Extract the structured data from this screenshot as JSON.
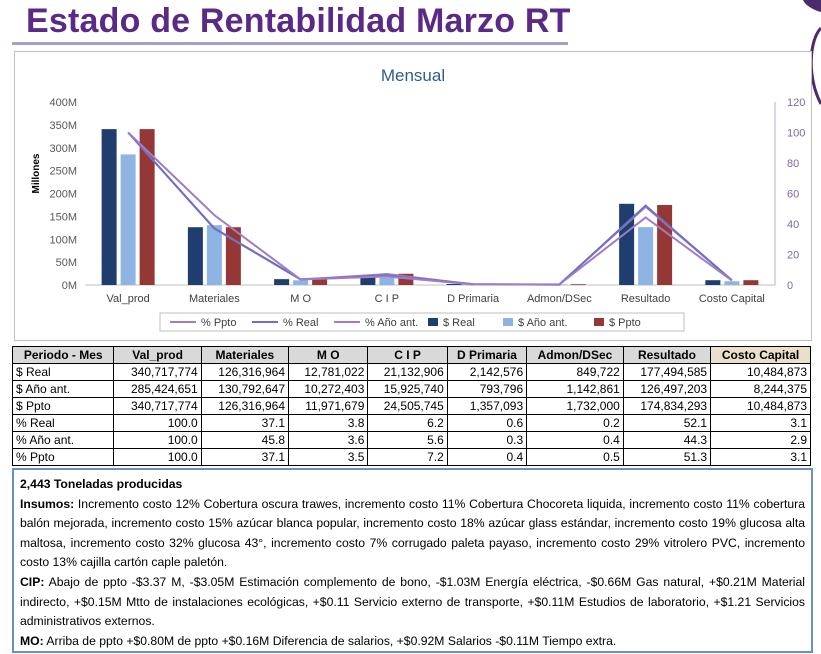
{
  "page_title": "Estado de Rentabilidad Marzo RT",
  "colors": {
    "title": "#5b2a86",
    "bar_real": "#1f3d6e",
    "bar_ano_ant": "#8db4e2",
    "bar_ppto": "#953735",
    "line_ppto": "#9b7fc0",
    "line_real": "#6f6fc4",
    "line_ano_ant": "#a07cc4"
  },
  "chart_data": {
    "type": "bar",
    "title": "Mensual",
    "ylabel": "Millones",
    "ylim": [
      0,
      400
    ],
    "y_ticks": [
      "0M",
      "50M",
      "100M",
      "150M",
      "200M",
      "250M",
      "300M",
      "350M",
      "400M"
    ],
    "y2lim": [
      0,
      120
    ],
    "y2_ticks": [
      "0",
      "20",
      "40",
      "60",
      "80",
      "100",
      "120"
    ],
    "categories": [
      "Val_prod",
      "Materiales",
      "M O",
      "C I P",
      "D Primaria",
      "Admon/DSec",
      "Resultado",
      "Costo Capital"
    ],
    "bar_series": [
      {
        "name": "$ Real",
        "values": [
          340.717774,
          126.316964,
          12.781022,
          21.132906,
          2.142576,
          0.849722,
          177.494585,
          10.484873
        ]
      },
      {
        "name": "$ Año ant.",
        "values": [
          285.424651,
          130.792647,
          10.272403,
          15.92574,
          0.793796,
          1.142861,
          126.497203,
          8.244375
        ]
      },
      {
        "name": "$ Ppto",
        "values": [
          340.717774,
          126.316964,
          11.971679,
          24.505745,
          1.357093,
          1.732,
          174.834293,
          10.484873
        ]
      }
    ],
    "line_series": [
      {
        "name": "% Ppto",
        "values": [
          100.0,
          37.1,
          3.5,
          7.2,
          0.4,
          0.5,
          51.3,
          3.1
        ]
      },
      {
        "name": "% Real",
        "values": [
          100.0,
          37.1,
          3.8,
          6.2,
          0.6,
          0.2,
          52.1,
          3.1
        ]
      },
      {
        "name": "% Año ant.",
        "values": [
          100.0,
          45.8,
          3.6,
          5.6,
          0.3,
          0.4,
          44.3,
          2.9
        ]
      }
    ],
    "legend": [
      "% Ppto",
      "% Real",
      "% Año ant.",
      "$ Real",
      "$ Año ant.",
      "$ Ppto"
    ],
    "legend_position": "bottom",
    "grid": false
  },
  "table": {
    "headers": [
      "Periodo - Mes",
      "Val_prod",
      "Materiales",
      "M O",
      "C I P",
      "D Primaria",
      "Admon/DSec",
      "Resultado",
      "Costo Capital"
    ],
    "rows": [
      [
        "$ Real",
        "340,717,774",
        "126,316,964",
        "12,781,022",
        "21,132,906",
        "2,142,576",
        "849,722",
        "177,494,585",
        "10,484,873"
      ],
      [
        "$ Año ant.",
        "285,424,651",
        "130,792,647",
        "10,272,403",
        "15,925,740",
        "793,796",
        "1,142,861",
        "126,497,203",
        "8,244,375"
      ],
      [
        "$ Ppto",
        "340,717,774",
        "126,316,964",
        "11,971,679",
        "24,505,745",
        "1,357,093",
        "1,732,000",
        "174,834,293",
        "10,484,873"
      ],
      [
        "% Real",
        "100.0",
        "37.1",
        "3.8",
        "6.2",
        "0.6",
        "0.2",
        "52.1",
        "3.1"
      ],
      [
        "% Año ant.",
        "100.0",
        "45.8",
        "3.6",
        "5.6",
        "0.3",
        "0.4",
        "44.3",
        "2.9"
      ],
      [
        "% Ppto",
        "100.0",
        "37.1",
        "3.5",
        "7.2",
        "0.4",
        "0.5",
        "51.3",
        "3.1"
      ]
    ]
  },
  "notes": {
    "heading": "2,443 Toneladas producidas",
    "insumos_label": "Insumos:",
    "insumos_text": " Incremento costo 12% Cobertura oscura trawes, incremento costo 11% Cobertura Chocoreta liquida, incremento costo 11% cobertura balón mejorada, incremento costo 15% azúcar blanca popular, incremento costo 18% azúcar glass estándar, incremento costo 19% glucosa alta maltosa, incremento costo 32% glucosa 43°, incremento costo 7% corrugado paleta payaso, incremento costo 29% vitrolero PVC, incremento costo 13% cajilla cartón caple paletón.",
    "cip_label": "CIP:",
    "cip_text": " Abajo de ppto -$3.37 M, -$3.05M Estimación complemento de bono, -$1.03M Energía eléctrica, -$0.66M Gas natural, +$0.21M Material indirecto, +$0.15M Mtto de instalaciones ecológicas, +$0.11 Servicio externo de transporte, +$0.11M Estudios de laboratorio, +$1.21 Servicios administrativos externos.",
    "mo_label": "MO:",
    "mo_text": " Arriba de ppto +$0.80M de ppto +$0.16M Diferencia de salarios,  +$0.92M Salarios -$0.11M Tiempo extra."
  }
}
